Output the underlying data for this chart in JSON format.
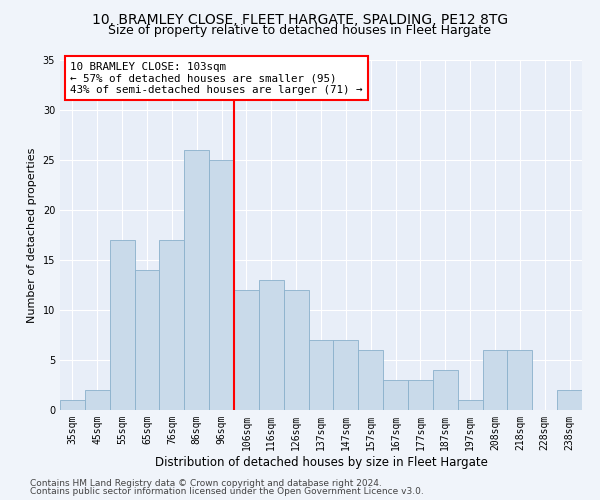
{
  "title1": "10, BRAMLEY CLOSE, FLEET HARGATE, SPALDING, PE12 8TG",
  "title2": "Size of property relative to detached houses in Fleet Hargate",
  "xlabel": "Distribution of detached houses by size in Fleet Hargate",
  "ylabel": "Number of detached properties",
  "categories": [
    "35sqm",
    "45sqm",
    "55sqm",
    "65sqm",
    "76sqm",
    "86sqm",
    "96sqm",
    "106sqm",
    "116sqm",
    "126sqm",
    "137sqm",
    "147sqm",
    "157sqm",
    "167sqm",
    "177sqm",
    "187sqm",
    "197sqm",
    "208sqm",
    "218sqm",
    "228sqm",
    "238sqm"
  ],
  "values": [
    1,
    2,
    17,
    14,
    17,
    26,
    25,
    12,
    13,
    12,
    7,
    7,
    6,
    3,
    3,
    4,
    1,
    6,
    6,
    0,
    2
  ],
  "bar_color": "#c9daea",
  "bar_edge_color": "#8ab0cc",
  "vline_color": "red",
  "annotation_text": "10 BRAMLEY CLOSE: 103sqm\n← 57% of detached houses are smaller (95)\n43% of semi-detached houses are larger (71) →",
  "annotation_box_color": "white",
  "annotation_box_edge": "red",
  "ylim": [
    0,
    35
  ],
  "yticks": [
    0,
    5,
    10,
    15,
    20,
    25,
    30,
    35
  ],
  "footer1": "Contains HM Land Registry data © Crown copyright and database right 2024.",
  "footer2": "Contains public sector information licensed under the Open Government Licence v3.0.",
  "bg_color": "#f0f4fa",
  "plot_bg_color": "#e8eef8",
  "grid_color": "#ffffff",
  "title_fontsize": 10,
  "subtitle_fontsize": 9,
  "tick_fontsize": 7,
  "ylabel_fontsize": 8,
  "xlabel_fontsize": 8.5,
  "footer_fontsize": 6.5,
  "annotation_fontsize": 7.8
}
